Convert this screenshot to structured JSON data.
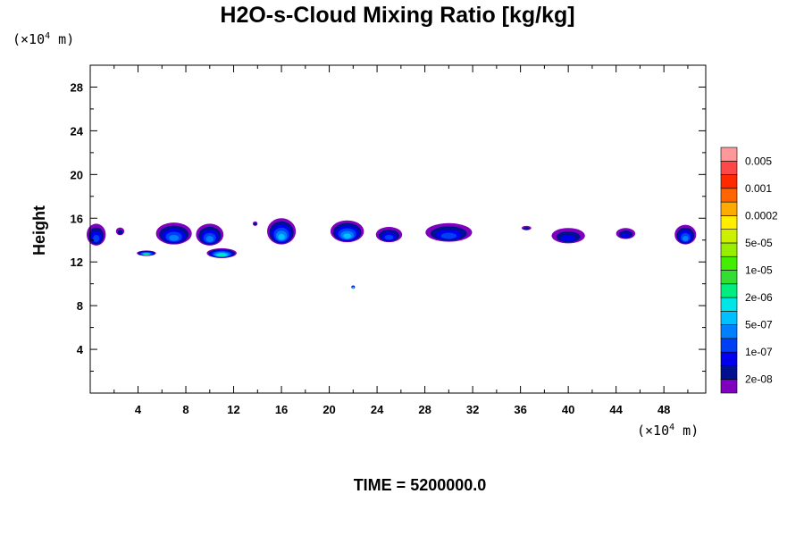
{
  "chart_data": {
    "type": "contour",
    "title": "H2O-s-Cloud Mixing Ratio [kg/kg]",
    "ylabel": "Height",
    "x_unit": {
      "prefix": "(×10",
      "exp": "4",
      "suffix": " m)"
    },
    "y_unit": {
      "prefix": "(×10",
      "exp": "4",
      "suffix": " m)"
    },
    "footer": "TIME = 5200000.0",
    "xlim": [
      0,
      51.5
    ],
    "ylim": [
      0,
      30
    ],
    "xticks": [
      "4",
      "8",
      "12",
      "16",
      "20",
      "24",
      "28",
      "32",
      "36",
      "40",
      "44",
      "48"
    ],
    "yticks": [
      "4",
      "8",
      "12",
      "16",
      "20",
      "24",
      "28"
    ],
    "legend": {
      "placement": "right",
      "colors": [
        "#7f00bf",
        "#00108f",
        "#0000ee",
        "#0040f4",
        "#0080ff",
        "#00c0ff",
        "#00e6e6",
        "#00ee80",
        "#33dd33",
        "#44ee00",
        "#99ee00",
        "#ccf000",
        "#ffee00",
        "#ffaa00",
        "#ff6600",
        "#ff2a00",
        "#ff4848",
        "#ff9999"
      ],
      "labels": [
        "2e-08",
        "1e-07",
        "5e-07",
        "2e-06",
        "1e-05",
        "5e-05",
        "0.0002",
        "0.001",
        "0.005"
      ]
    },
    "cloud_regions": [
      {
        "x": 0.5,
        "y": 14.5,
        "w": 1.6,
        "h": 2.0,
        "level": 3
      },
      {
        "x": 2.5,
        "y": 14.8,
        "w": 0.7,
        "h": 0.7,
        "level": 1
      },
      {
        "x": 4.7,
        "y": 12.8,
        "w": 1.6,
        "h": 0.5,
        "level": 7
      },
      {
        "x": 7.0,
        "y": 14.6,
        "w": 3.0,
        "h": 2.0,
        "level": 4
      },
      {
        "x": 10.0,
        "y": 14.5,
        "w": 2.3,
        "h": 2.0,
        "level": 4
      },
      {
        "x": 11.0,
        "y": 12.8,
        "w": 2.5,
        "h": 0.9,
        "level": 7
      },
      {
        "x": 13.8,
        "y": 15.5,
        "w": 0.4,
        "h": 0.4,
        "level": 1
      },
      {
        "x": 16.0,
        "y": 14.8,
        "w": 2.4,
        "h": 2.4,
        "level": 5
      },
      {
        "x": 21.5,
        "y": 14.8,
        "w": 2.8,
        "h": 2.0,
        "level": 5
      },
      {
        "x": 22.0,
        "y": 9.7,
        "w": 0.3,
        "h": 0.3,
        "level": 7
      },
      {
        "x": 25.0,
        "y": 14.5,
        "w": 2.2,
        "h": 1.4,
        "level": 3
      },
      {
        "x": 30.0,
        "y": 14.7,
        "w": 3.9,
        "h": 1.7,
        "level": 3
      },
      {
        "x": 36.5,
        "y": 15.1,
        "w": 0.8,
        "h": 0.4,
        "level": 1
      },
      {
        "x": 40.0,
        "y": 14.4,
        "w": 2.8,
        "h": 1.4,
        "level": 2
      },
      {
        "x": 44.8,
        "y": 14.6,
        "w": 1.6,
        "h": 1.0,
        "level": 2
      },
      {
        "x": 49.8,
        "y": 14.5,
        "w": 1.8,
        "h": 1.8,
        "level": 4
      }
    ]
  }
}
